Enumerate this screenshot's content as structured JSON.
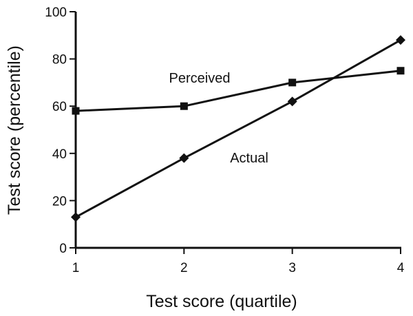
{
  "chart_data": {
    "type": "line",
    "title": "",
    "xlabel": "Test score (quartile)",
    "ylabel": "Test score (percentile)",
    "x": [
      1,
      2,
      3,
      4
    ],
    "xlim": [
      1,
      4
    ],
    "ylim": [
      0,
      100
    ],
    "x_ticks": [
      "1",
      "2",
      "3",
      "4"
    ],
    "y_ticks": [
      "0",
      "20",
      "40",
      "60",
      "80",
      "100"
    ],
    "grid": false,
    "series": [
      {
        "name": "Perceived",
        "marker": "square",
        "values": [
          58,
          60,
          70,
          75
        ]
      },
      {
        "name": "Actual",
        "marker": "diamond",
        "values": [
          13,
          38,
          62,
          88
        ]
      }
    ],
    "color": "#111111"
  }
}
